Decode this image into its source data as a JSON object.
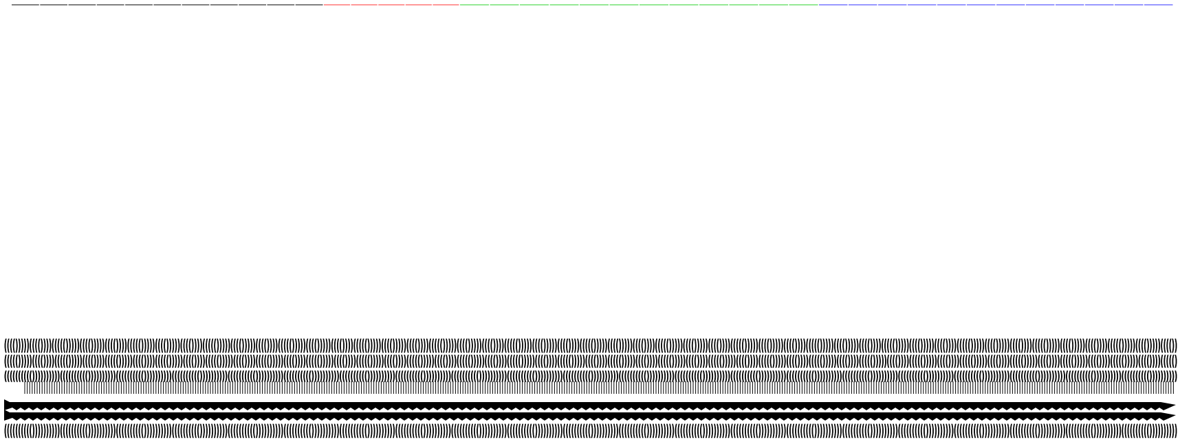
{
  "colors": {
    "background": "#ffffff",
    "ink": "#000000",
    "segment_black": "#000000",
    "segment_red": "#ff3030",
    "segment_green": "#28d028",
    "segment_blue": "#3030ff"
  },
  "segments": [
    {
      "color": "segment_black",
      "dashes": 11
    },
    {
      "color": "segment_red",
      "dashes": 5
    },
    {
      "color": "segment_green",
      "dashes": 12
    },
    {
      "color": "segment_blue",
      "dashes": 12
    }
  ],
  "glyph_rows": [
    {
      "pattern": "(((()))))(((())))((((()))))",
      "weight": "bold"
    },
    {
      "pattern": "((((()))))(((())))",
      "weight": "bold"
    },
    {
      "pattern": "(((((((((())))))))))",
      "weight": "bold"
    },
    {
      "pattern": "|",
      "weight": "normal"
    },
    {
      "pattern": ">",
      "weight": "bold"
    },
    {
      "pattern": ">",
      "weight": "bold"
    },
    {
      "pattern": "(((((((((())))))))))",
      "weight": "bold"
    }
  ]
}
